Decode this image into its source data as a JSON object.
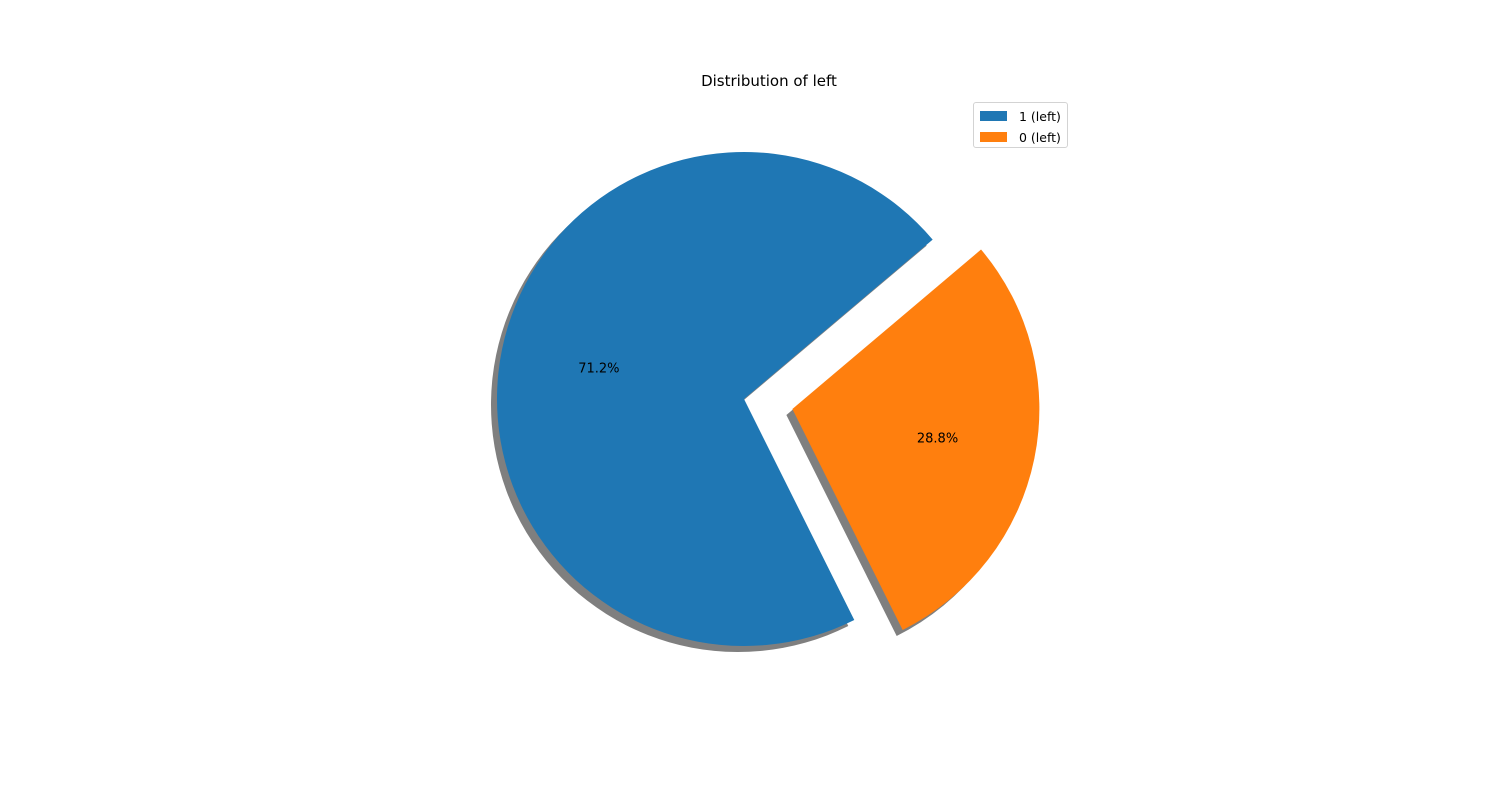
{
  "chart_data": {
    "type": "pie",
    "title": "Distribution of left",
    "slices": [
      {
        "label": "1 (left)",
        "value": 71.2,
        "value_label": "71.2%",
        "color": "#1f77b4",
        "explode": false
      },
      {
        "label": "0 (left)",
        "value": 28.8,
        "value_label": "28.8%",
        "color": "#ff7f0e",
        "explode": true
      }
    ],
    "shadow": true,
    "legend": {
      "placement": "top-right"
    }
  }
}
